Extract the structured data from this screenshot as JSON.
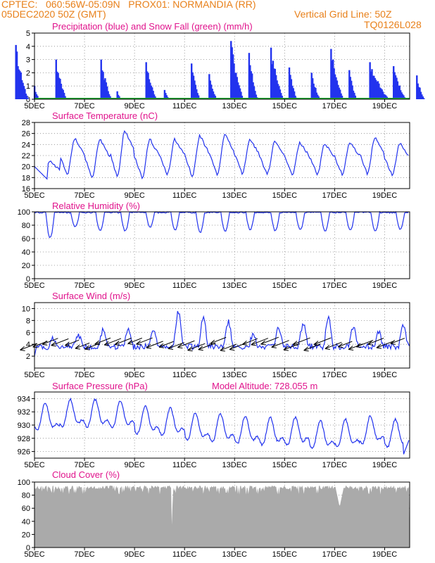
{
  "header": {
    "line1_left": "CPTEC:   060:56W-05:09N   PROX01: NORMANDIA (RR)",
    "line2_left": "05DEC2020 50Z (GMT)",
    "line1_right": "Vertical Grid Line: 50Z",
    "line2_right": "TQ0126L028"
  },
  "x_ticks": [
    "5DEC",
    "7DEC",
    "9DEC",
    "11DEC",
    "13DEC",
    "15DEC",
    "17DEC",
    "19DEC"
  ],
  "colors": {
    "blue_series": "#2233ee",
    "snow": "#22aa33",
    "cloud": "#aaaaaa",
    "title": "#e0138c",
    "header": "#e8801a"
  },
  "chart_data": [
    {
      "type": "bar",
      "title": "Precipitation (blue) and Snow Fall (green) (mm/h)",
      "ylim": [
        0,
        5
      ],
      "yticks": [
        0,
        1,
        2,
        3,
        4,
        5
      ],
      "series": [
        {
          "name": "Precipitation",
          "color": "#2233ee",
          "peaks": [
            {
              "day": 0.9,
              "max": 2.6,
              "width": 0.45
            },
            {
              "day": 2.6,
              "max": 2.1,
              "width": 0.35
            },
            {
              "day": 4.3,
              "max": 4.1,
              "width": 0.5
            },
            {
              "day": 5.0,
              "max": 1.0,
              "width": 0.2
            },
            {
              "day": 5.9,
              "max": 3.0,
              "width": 0.45
            },
            {
              "day": 7.7,
              "max": 3.0,
              "width": 0.45
            },
            {
              "day": 8.3,
              "max": 0.6,
              "width": 0.15
            },
            {
              "day": 9.5,
              "max": 2.8,
              "width": 0.45
            },
            {
              "day": 10.2,
              "max": 0.7,
              "width": 0.2
            },
            {
              "day": 11.3,
              "max": 2.7,
              "width": 0.35
            },
            {
              "day": 12.0,
              "max": 1.9,
              "width": 0.3
            },
            {
              "day": 12.9,
              "max": 4.4,
              "width": 0.5
            },
            {
              "day": 13.6,
              "max": 3.5,
              "width": 0.35
            },
            {
              "day": 14.5,
              "max": 3.9,
              "width": 0.5
            },
            {
              "day": 15.2,
              "max": 2.4,
              "width": 0.3
            },
            {
              "day": 16.1,
              "max": 2.0,
              "width": 0.35
            },
            {
              "day": 16.9,
              "max": 3.8,
              "width": 0.5
            },
            {
              "day": 17.6,
              "max": 2.2,
              "width": 0.3
            },
            {
              "day": 18.5,
              "max": 2.8,
              "width": 0.8
            },
            {
              "day": 19.4,
              "max": 2.5,
              "width": 0.5
            },
            {
              "day": 20.3,
              "max": 1.8,
              "width": 0.3
            }
          ]
        },
        {
          "name": "Snow Fall",
          "color": "#22aa33",
          "values": "0 throughout"
        }
      ]
    },
    {
      "type": "line",
      "title": "Surface Temperature (nC)",
      "ylim": [
        16,
        28
      ],
      "yticks": [
        16,
        18,
        20,
        22,
        24,
        26,
        28
      ],
      "daily_cycle": [
        {
          "day": 5,
          "min": 17.5,
          "max": 21.0
        },
        {
          "day": 6,
          "min": 18.5,
          "max": 25.2
        },
        {
          "day": 7,
          "min": 18.0,
          "max": 25.0
        },
        {
          "day": 8,
          "min": 18.2,
          "max": 26.5
        },
        {
          "day": 9,
          "min": 18.0,
          "max": 25.0
        },
        {
          "day": 10,
          "min": 18.5,
          "max": 25.0
        },
        {
          "day": 11,
          "min": 18.2,
          "max": 25.6
        },
        {
          "day": 12,
          "min": 18.5,
          "max": 25.8
        },
        {
          "day": 13,
          "min": 18.8,
          "max": 25.0
        },
        {
          "day": 14,
          "min": 18.6,
          "max": 24.8
        },
        {
          "day": 15,
          "min": 18.5,
          "max": 24.4
        },
        {
          "day": 16,
          "min": 18.7,
          "max": 24.2
        },
        {
          "day": 17,
          "min": 18.5,
          "max": 24.4
        },
        {
          "day": 18,
          "min": 18.8,
          "max": 25.2
        },
        {
          "day": 19,
          "min": 18.5,
          "max": 24.2
        },
        {
          "day": 20,
          "min": 19.0,
          "max": 23.6
        }
      ]
    },
    {
      "type": "line",
      "title": "Relative Humidity (%)",
      "ylim": [
        0,
        100
      ],
      "yticks": [
        0,
        20,
        40,
        60,
        80,
        100
      ],
      "daily_min": [
        62,
        78,
        72,
        72,
        78,
        74,
        70,
        72,
        74,
        73,
        74,
        72,
        73,
        72,
        75,
        79
      ]
    },
    {
      "type": "line",
      "title": "Surface Wind (m/s)",
      "ylim": [
        0,
        11
      ],
      "yticks": [
        2,
        4,
        6,
        8,
        10
      ],
      "daily_max": [
        5.0,
        5.5,
        6.5,
        6.8,
        6.5,
        9.5,
        8.2,
        7.8,
        5.8,
        6.5,
        7.5,
        8.5,
        7.0,
        6.0,
        7.0,
        6.5
      ],
      "wind_arrows": "toward the southwest"
    },
    {
      "type": "line",
      "title": "Surface Pressure (hPa)",
      "annotation": "Model Altitude: 728.055 m",
      "ylim": [
        925,
        935
      ],
      "yticks": [
        926,
        928,
        930,
        932,
        934
      ],
      "semidiurnal_peaks": [
        933.5,
        934.0,
        934.0,
        933.8,
        933.0,
        932.7,
        932.0,
        931.8,
        931.5,
        931.3,
        931.3,
        930.8,
        931.0,
        931.5,
        931.0,
        930.5
      ]
    },
    {
      "type": "area",
      "title": "Cloud Cover (%)",
      "ylim": [
        0,
        100
      ],
      "yticks": [
        0,
        20,
        40,
        60,
        80,
        100
      ],
      "typical_value": 95,
      "dips": [
        {
          "day": 10.5,
          "value": 5
        },
        {
          "day": 17.2,
          "value": 62
        }
      ]
    }
  ]
}
